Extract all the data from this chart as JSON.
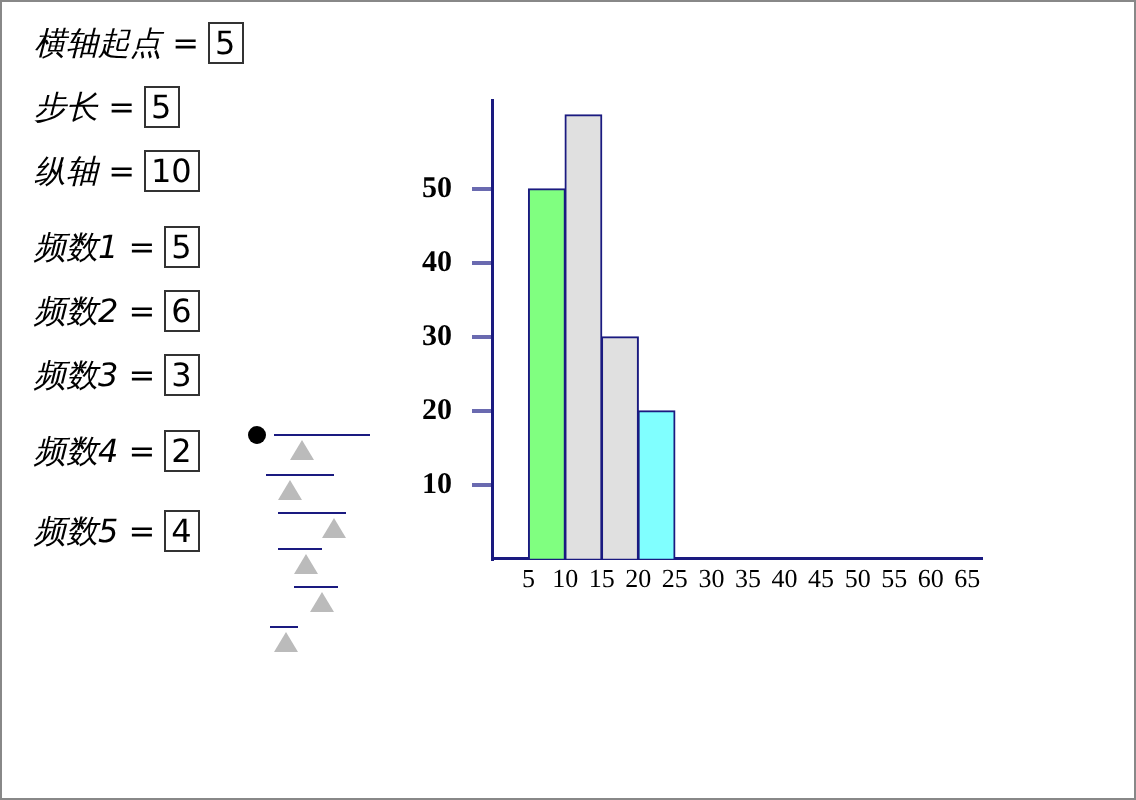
{
  "chart_data": {
    "type": "histogram",
    "bins": [
      5,
      10,
      15,
      20,
      25
    ],
    "values": [
      50,
      60,
      30,
      20
    ],
    "colors": [
      "#80ff80",
      "#e0e0e0",
      "#e0e0e0",
      "#80ffff"
    ],
    "xlim": [
      0,
      67
    ],
    "xticks": [
      5,
      10,
      15,
      20,
      25,
      30,
      35,
      40,
      45,
      50,
      55,
      60,
      65
    ],
    "ylim": [
      0,
      62
    ],
    "yticks": [
      10,
      20,
      30,
      40,
      50
    ],
    "grid": false,
    "legend": false,
    "annotations": [
      "横轴起点 = 5",
      "步长 = 5",
      "纵轴 = 10",
      "频数1 = 5",
      "频数2 = 6",
      "频数3 = 3",
      "频数4 = 2",
      "频数5 = 4"
    ]
  }
}
